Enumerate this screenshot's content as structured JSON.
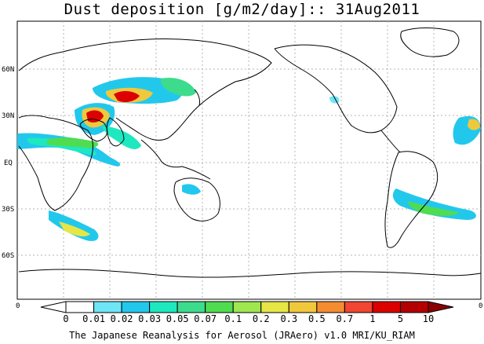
{
  "title": "Dust deposition [g/m2/day]:: 31Aug2011",
  "lat_labels": [
    "60N",
    "30N",
    "EQ",
    "30S",
    "60S"
  ],
  "edge_labels": {
    "left": "0",
    "right": "0"
  },
  "colorbar": {
    "labels": [
      "0",
      "0.01",
      "0.02",
      "0.03",
      "0.05",
      "0.07",
      "0.1",
      "0.2",
      "0.3",
      "0.5",
      "0.7",
      "1",
      "5",
      "10"
    ],
    "colors": [
      "#ffffff",
      "#ffffff",
      "#6ee6f5",
      "#22c8ec",
      "#1ee8c0",
      "#3cdc8c",
      "#50dc50",
      "#a0e650",
      "#e6e646",
      "#f0c83c",
      "#f58c32",
      "#f04632",
      "#dc0000",
      "#b40000",
      "#8c0000"
    ]
  },
  "credit": "The Japanese Reanalysis for Aerosol (JRAero) v1.0 MRI/KU_RIAM",
  "colors": {
    "coast": "#000000",
    "grid": "#b4b4b4"
  }
}
